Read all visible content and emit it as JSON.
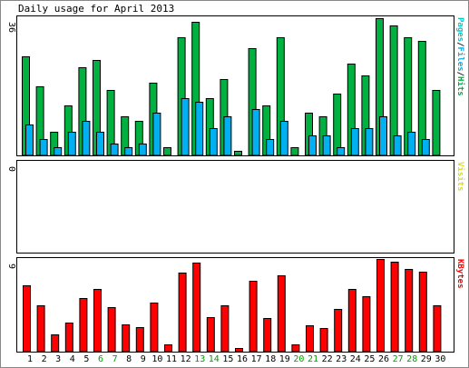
{
  "chart_data": {
    "type": "bar",
    "title": "Daily usage for April 2013",
    "categories": [
      "1",
      "2",
      "3",
      "4",
      "5",
      "6",
      "7",
      "8",
      "9",
      "10",
      "11",
      "12",
      "13",
      "14",
      "15",
      "16",
      "17",
      "18",
      "19",
      "20",
      "21",
      "22",
      "23",
      "24",
      "25",
      "26",
      "27",
      "28",
      "29",
      "30"
    ],
    "weekend_days": [
      "6",
      "7",
      "13",
      "14",
      "20",
      "21",
      "27",
      "28"
    ],
    "colors": {
      "hits": "#00b040",
      "files": "#00b0f0",
      "pages": "#00c8c8",
      "visits": "#e0e000",
      "kbytes": "#ff0000",
      "weekday_label": "#000000",
      "weekend_label": "#00a000",
      "panel_border": "#000000",
      "outer_border": "#888888"
    },
    "panels": [
      {
        "id": "hits-files-pages",
        "axis_max_label": "36",
        "axis_max": 36,
        "legend": [
          {
            "text": "Pages",
            "color": "#00c8c8"
          },
          {
            "text": "/",
            "color": "#000000"
          },
          {
            "text": "Files",
            "color": "#00b0f0"
          },
          {
            "text": "/",
            "color": "#000000"
          },
          {
            "text": "Hits",
            "color": "#00b040"
          }
        ],
        "series": [
          {
            "name": "Hits",
            "color": "#00b040",
            "values": [
              26.2,
              18.2,
              6.2,
              13.2,
              23.2,
              25.2,
              17.2,
              10.2,
              9.2,
              19.2,
              2.2,
              31.2,
              35.2,
              15.2,
              20.2,
              1.2,
              28.2,
              13.2,
              31.2,
              2.2,
              11.2,
              10.2,
              16.2,
              24.2,
              21.2,
              36.2,
              34.2,
              31.2,
              30.2,
              17.2
            ]
          },
          {
            "name": "Files",
            "color": "#00b0f0",
            "values": [
              8.2,
              4.2,
              2.2,
              6.2,
              9.2,
              6.2,
              3.2,
              2.2,
              3.2,
              11.2,
              0,
              15.2,
              14.2,
              7.2,
              10.2,
              0,
              12.2,
              4.2,
              9.2,
              0,
              5.2,
              5.2,
              2.2,
              7.2,
              7.2,
              10.2,
              5.2,
              6.2,
              4.2,
              0
            ]
          },
          {
            "name": "Pages",
            "color": "#00c8c8",
            "values": [
              0,
              0,
              0,
              0,
              0,
              0,
              0,
              0,
              0,
              0,
              0,
              0,
              0,
              0,
              0,
              0,
              0,
              0,
              0,
              0,
              0,
              0,
              0,
              0,
              0,
              0,
              0,
              0,
              0,
              0
            ]
          }
        ]
      },
      {
        "id": "visits",
        "axis_max_label": "0",
        "axis_max": 1,
        "legend": [
          {
            "text": "Visits",
            "color": "#e0e000"
          }
        ],
        "series": [
          {
            "name": "Visits",
            "color": "#e0e000",
            "values": [
              0,
              0,
              0,
              0,
              0,
              0,
              0,
              0,
              0,
              0,
              0,
              0,
              0,
              0,
              0,
              0,
              0,
              0,
              0,
              0,
              0,
              0,
              0,
              0,
              0,
              0,
              0,
              0,
              0,
              0
            ]
          }
        ]
      },
      {
        "id": "kbytes",
        "axis_max_label": "9",
        "axis_max": 9,
        "legend": [
          {
            "text": "KBytes",
            "color": "#ff0000"
          }
        ],
        "series": [
          {
            "name": "KBytes",
            "color": "#ff0000",
            "values": [
              6.6,
              4.6,
              1.7,
              2.9,
              5.3,
              6.2,
              4.4,
              2.7,
              2.4,
              4.9,
              0.7,
              7.8,
              8.8,
              3.4,
              4.6,
              0.4,
              7.0,
              3.3,
              7.6,
              0.7,
              2.6,
              2.3,
              4.2,
              6.2,
              5.5,
              9.2,
              8.9,
              8.2,
              7.9,
              4.6
            ]
          }
        ]
      }
    ]
  }
}
